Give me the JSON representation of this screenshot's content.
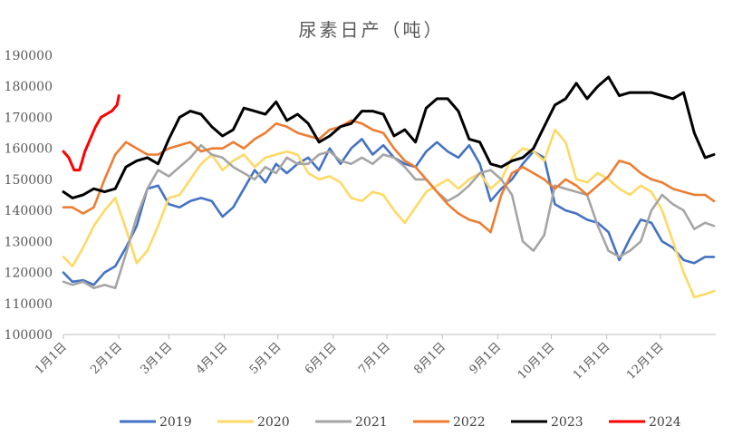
{
  "chart_data": {
    "type": "line",
    "title": "尿素日产（吨）",
    "xlabel": "",
    "ylabel": "",
    "ylim": [
      100000,
      190000
    ],
    "yticks": [
      "100000",
      "110000",
      "120000",
      "130000",
      "140000",
      "150000",
      "160000",
      "170000",
      "180000",
      "190000"
    ],
    "x_tick_labels": [
      "1月1日",
      "2月1日",
      "3月1日",
      "4月1日",
      "5月1日",
      "6月1日",
      "7月1日",
      "8月1日",
      "9月1日",
      "10月1日",
      "11月1日",
      "12月1日"
    ],
    "x_tick_days": [
      1,
      32,
      60,
      91,
      121,
      152,
      182,
      213,
      244,
      274,
      305,
      335
    ],
    "xlim": [
      1,
      366
    ],
    "grid": false,
    "legend": "bottom",
    "series": [
      {
        "name": "2019",
        "color": "#4472C4",
        "x": [
          1,
          6,
          12,
          18,
          24,
          30,
          36,
          42,
          48,
          54,
          60,
          66,
          72,
          78,
          84,
          90,
          96,
          102,
          108,
          114,
          120,
          126,
          132,
          138,
          144,
          150,
          156,
          162,
          168,
          174,
          180,
          186,
          192,
          198,
          204,
          210,
          216,
          222,
          228,
          234,
          240,
          246,
          252,
          258,
          264,
          270,
          276,
          282,
          288,
          294,
          300,
          306,
          312,
          318,
          324,
          330,
          336,
          342,
          348,
          354,
          360,
          365
        ],
        "y": [
          120000,
          117000,
          117500,
          116000,
          120000,
          122000,
          128000,
          135000,
          147000,
          148000,
          142000,
          141000,
          143000,
          144000,
          143000,
          138000,
          141000,
          147000,
          153000,
          149000,
          155000,
          152000,
          155000,
          157000,
          153000,
          160000,
          155000,
          160000,
          163000,
          158000,
          161000,
          157000,
          155000,
          154000,
          159000,
          162000,
          159000,
          157000,
          161000,
          155000,
          143000,
          147000,
          150000,
          155000,
          159000,
          157000,
          142000,
          140000,
          139000,
          137000,
          136000,
          133000,
          124000,
          131000,
          137000,
          136000,
          130000,
          128000,
          124000,
          123000,
          125000,
          125000
        ]
      },
      {
        "name": "2020",
        "color": "#FFD966",
        "x": [
          1,
          6,
          12,
          18,
          24,
          30,
          36,
          42,
          48,
          54,
          60,
          66,
          72,
          78,
          84,
          90,
          96,
          102,
          108,
          114,
          120,
          126,
          132,
          138,
          144,
          150,
          156,
          162,
          168,
          174,
          180,
          186,
          192,
          198,
          204,
          210,
          216,
          222,
          228,
          234,
          240,
          246,
          252,
          258,
          264,
          270,
          276,
          282,
          288,
          294,
          300,
          306,
          312,
          318,
          324,
          330,
          336,
          342,
          348,
          354,
          360,
          365
        ],
        "y": [
          125000,
          122000,
          128000,
          135000,
          140000,
          144000,
          134000,
          123000,
          127000,
          135000,
          144000,
          145000,
          150000,
          155000,
          158000,
          153000,
          156000,
          158000,
          154000,
          157000,
          158000,
          159000,
          158000,
          152000,
          150000,
          151000,
          149000,
          144000,
          143000,
          146000,
          145000,
          140000,
          136000,
          141000,
          146000,
          148000,
          150000,
          147000,
          150000,
          152000,
          147000,
          150000,
          157000,
          160000,
          159000,
          156000,
          166000,
          162000,
          150000,
          149000,
          152000,
          150000,
          147000,
          145000,
          148000,
          146000,
          140000,
          130000,
          120000,
          112000,
          113000,
          114000
        ]
      },
      {
        "name": "2021",
        "color": "#A5A5A5",
        "x": [
          1,
          6,
          12,
          18,
          24,
          30,
          36,
          42,
          48,
          54,
          60,
          66,
          72,
          78,
          84,
          90,
          96,
          102,
          108,
          114,
          120,
          126,
          132,
          138,
          144,
          150,
          156,
          162,
          168,
          174,
          180,
          186,
          192,
          198,
          204,
          210,
          216,
          222,
          228,
          234,
          240,
          246,
          252,
          258,
          264,
          270,
          276,
          282,
          288,
          294,
          300,
          306,
          312,
          318,
          324,
          330,
          336,
          342,
          348,
          354,
          360,
          365
        ],
        "y": [
          117000,
          116000,
          117000,
          115000,
          116000,
          115000,
          126000,
          138000,
          147000,
          153000,
          151000,
          154000,
          157000,
          161000,
          158000,
          157000,
          154000,
          152000,
          150000,
          154000,
          152000,
          157000,
          155000,
          155000,
          158000,
          159000,
          156000,
          155000,
          157000,
          155000,
          158000,
          157000,
          154000,
          150000,
          150000,
          146000,
          143000,
          145000,
          148000,
          152000,
          153000,
          150000,
          145000,
          130000,
          127000,
          132000,
          148000,
          147000,
          146000,
          145000,
          135000,
          127000,
          125000,
          127000,
          130000,
          140000,
          145000,
          142000,
          140000,
          134000,
          136000,
          135000
        ]
      },
      {
        "name": "2022",
        "color": "#ED7D31",
        "x": [
          1,
          6,
          12,
          18,
          24,
          30,
          36,
          42,
          48,
          54,
          60,
          66,
          72,
          78,
          84,
          90,
          96,
          102,
          108,
          114,
          120,
          126,
          132,
          138,
          144,
          150,
          156,
          162,
          168,
          174,
          180,
          186,
          192,
          198,
          204,
          210,
          216,
          222,
          228,
          234,
          240,
          246,
          252,
          258,
          264,
          270,
          276,
          282,
          288,
          294,
          300,
          306,
          312,
          318,
          324,
          330,
          336,
          342,
          348,
          354,
          360,
          365
        ],
        "y": [
          141000,
          141000,
          139000,
          141000,
          150000,
          158000,
          162000,
          160000,
          158000,
          158000,
          160000,
          161000,
          162000,
          159000,
          160000,
          160000,
          162000,
          160000,
          163000,
          165000,
          168000,
          167000,
          165000,
          164000,
          163000,
          166000,
          167000,
          169000,
          168000,
          166000,
          165000,
          160000,
          156000,
          154000,
          150000,
          146000,
          142000,
          139000,
          137000,
          136000,
          133000,
          145000,
          152000,
          154000,
          152000,
          150000,
          147000,
          150000,
          148000,
          145000,
          148000,
          151000,
          156000,
          155000,
          152000,
          150000,
          149000,
          147000,
          146000,
          145000,
          145000,
          143000
        ]
      },
      {
        "name": "2023",
        "color": "#000000",
        "x": [
          1,
          6,
          12,
          18,
          24,
          30,
          36,
          42,
          48,
          54,
          60,
          66,
          72,
          78,
          84,
          90,
          96,
          102,
          108,
          114,
          120,
          126,
          132,
          138,
          144,
          150,
          156,
          162,
          168,
          174,
          180,
          186,
          192,
          198,
          204,
          210,
          216,
          222,
          228,
          234,
          240,
          246,
          252,
          258,
          264,
          270,
          276,
          282,
          288,
          294,
          300,
          306,
          312,
          318,
          324,
          330,
          336,
          342,
          348,
          354,
          360,
          365
        ],
        "y": [
          146000,
          144000,
          145000,
          147000,
          146000,
          147000,
          154000,
          156000,
          157000,
          155000,
          163000,
          170000,
          172000,
          171000,
          167000,
          164000,
          166000,
          173000,
          172000,
          171000,
          175000,
          169000,
          171000,
          168000,
          162000,
          164000,
          167000,
          168000,
          172000,
          172000,
          171000,
          164000,
          166000,
          162000,
          173000,
          176000,
          176000,
          172000,
          163000,
          162000,
          155000,
          154000,
          156000,
          157000,
          160000,
          167000,
          174000,
          176000,
          181000,
          176000,
          180000,
          183000,
          177000,
          178000,
          178000,
          178000,
          177000,
          176000,
          178000,
          165000,
          157000,
          158000
        ]
      },
      {
        "name": "2024",
        "color": "#FF0000",
        "x": [
          1,
          4,
          7,
          10,
          13,
          16,
          19,
          22,
          25,
          28,
          31,
          32
        ],
        "y": [
          159000,
          157000,
          153000,
          153000,
          159000,
          163000,
          167000,
          170000,
          171000,
          172000,
          174000,
          177000
        ]
      }
    ]
  }
}
